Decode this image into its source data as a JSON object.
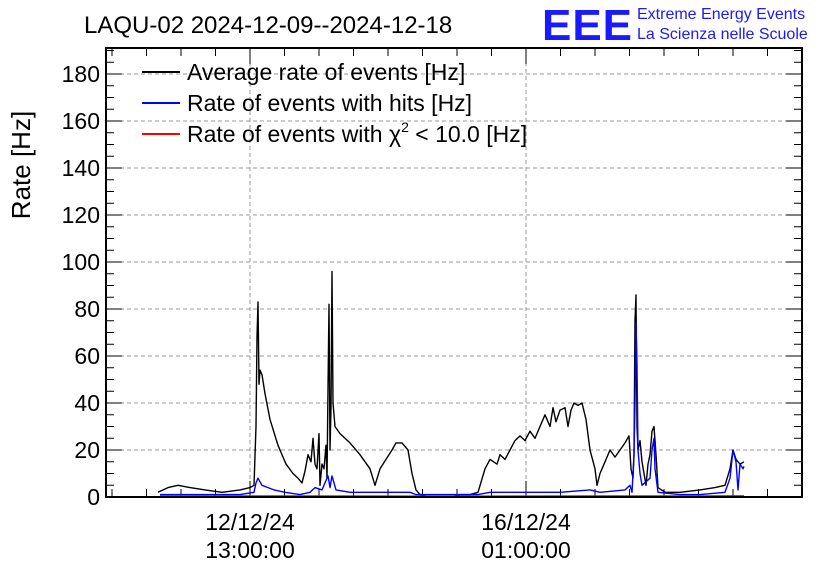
{
  "logo": {
    "mark": "EEE",
    "line1": "Extreme Energy Events",
    "line2": "La Scienza nelle Scuole",
    "color": "#1a1aff"
  },
  "chart_data": {
    "type": "line",
    "title": "LAQU-02 2024-12-09--2024-12-18",
    "ylabel": "Rate [Hz]",
    "xlabel": "",
    "ylim": [
      0,
      195
    ],
    "yticks": [
      0,
      20,
      40,
      60,
      80,
      100,
      120,
      140,
      160,
      180
    ],
    "xtick_labels": [
      {
        "date": "12/12/24",
        "time": "13:00:00"
      },
      {
        "date": "16/12/24",
        "time": "01:00:00"
      }
    ],
    "grid": true,
    "legend_placement": "top-left",
    "legend": [
      {
        "label": "Average rate of events [Hz]",
        "color": "#000000"
      },
      {
        "label": "Rate of events with hits [Hz]",
        "color": "#0000ff"
      },
      {
        "label_prefix": "Rate of events with ",
        "label_symbol": "χ",
        "label_sup": "2",
        "label_suffix": " < 10.0 [Hz]",
        "color": "#ff0000"
      }
    ],
    "series": [
      {
        "color": "#000000",
        "points": [
          [
            158,
            2
          ],
          [
            168,
            4
          ],
          [
            178,
            5
          ],
          [
            190,
            4
          ],
          [
            205,
            3
          ],
          [
            222,
            2
          ],
          [
            240,
            3
          ],
          [
            250,
            4
          ],
          [
            254,
            5
          ],
          [
            256,
            30
          ],
          [
            257,
            68
          ],
          [
            258,
            83
          ],
          [
            259,
            48
          ],
          [
            260,
            54
          ],
          [
            262,
            52
          ],
          [
            265,
            44
          ],
          [
            270,
            33
          ],
          [
            278,
            22
          ],
          [
            286,
            14
          ],
          [
            293,
            10
          ],
          [
            298,
            8
          ],
          [
            302,
            6
          ],
          [
            305,
            11
          ],
          [
            308,
            18
          ],
          [
            311,
            15
          ],
          [
            313,
            25
          ],
          [
            315,
            14
          ],
          [
            317,
            12
          ],
          [
            319,
            27
          ],
          [
            320,
            5
          ],
          [
            322,
            14
          ],
          [
            324,
            12
          ],
          [
            326,
            22
          ],
          [
            327,
            8
          ],
          [
            328,
            46
          ],
          [
            329,
            82
          ],
          [
            330,
            20
          ],
          [
            331,
            38
          ],
          [
            332,
            96
          ],
          [
            333,
            40
          ],
          [
            335,
            30
          ],
          [
            340,
            27
          ],
          [
            350,
            23
          ],
          [
            360,
            18
          ],
          [
            370,
            12
          ],
          [
            375,
            5
          ],
          [
            380,
            12
          ],
          [
            386,
            16
          ],
          [
            392,
            20
          ],
          [
            396,
            23
          ],
          [
            402,
            23
          ],
          [
            408,
            20
          ],
          [
            412,
            10
          ],
          [
            416,
            3
          ],
          [
            420,
            1
          ],
          [
            430,
            0
          ],
          [
            450,
            0
          ],
          [
            460,
            1
          ],
          [
            470,
            1
          ],
          [
            478,
            2
          ],
          [
            485,
            12
          ],
          [
            490,
            16
          ],
          [
            497,
            14
          ],
          [
            500,
            18
          ],
          [
            505,
            16
          ],
          [
            510,
            20
          ],
          [
            515,
            24
          ],
          [
            520,
            26
          ],
          [
            525,
            24
          ],
          [
            530,
            28
          ],
          [
            535,
            25
          ],
          [
            540,
            30
          ],
          [
            545,
            35
          ],
          [
            550,
            30
          ],
          [
            553,
            38
          ],
          [
            556,
            32
          ],
          [
            560,
            37
          ],
          [
            565,
            38
          ],
          [
            568,
            30
          ],
          [
            571,
            37
          ],
          [
            574,
            40
          ],
          [
            578,
            39
          ],
          [
            582,
            40
          ],
          [
            586,
            33
          ],
          [
            590,
            20
          ],
          [
            595,
            12
          ],
          [
            597,
            5
          ],
          [
            600,
            10
          ],
          [
            605,
            15
          ],
          [
            610,
            20
          ],
          [
            615,
            17
          ],
          [
            620,
            20
          ],
          [
            625,
            23
          ],
          [
            629,
            26
          ],
          [
            631,
            12
          ],
          [
            633,
            8
          ],
          [
            634,
            18
          ],
          [
            635,
            75
          ],
          [
            636,
            86
          ],
          [
            637,
            30
          ],
          [
            638,
            20
          ],
          [
            640,
            24
          ],
          [
            642,
            15
          ],
          [
            646,
            5
          ],
          [
            648,
            14
          ],
          [
            650,
            18
          ],
          [
            652,
            28
          ],
          [
            654,
            30
          ],
          [
            656,
            18
          ],
          [
            658,
            4
          ],
          [
            665,
            2
          ],
          [
            680,
            2
          ],
          [
            700,
            3
          ],
          [
            715,
            4
          ],
          [
            725,
            5
          ],
          [
            730,
            12
          ],
          [
            733,
            20
          ],
          [
            736,
            16
          ],
          [
            740,
            14
          ],
          [
            744,
            15
          ]
        ]
      },
      {
        "color": "#0000ff",
        "points": [
          [
            160,
            1
          ],
          [
            200,
            1
          ],
          [
            240,
            1
          ],
          [
            254,
            2
          ],
          [
            256,
            6
          ],
          [
            258,
            8
          ],
          [
            262,
            5
          ],
          [
            268,
            4
          ],
          [
            274,
            3
          ],
          [
            285,
            2
          ],
          [
            300,
            1
          ],
          [
            310,
            2
          ],
          [
            315,
            4
          ],
          [
            322,
            3
          ],
          [
            328,
            9
          ],
          [
            330,
            4
          ],
          [
            332,
            9
          ],
          [
            336,
            3
          ],
          [
            350,
            2
          ],
          [
            370,
            2
          ],
          [
            390,
            2
          ],
          [
            410,
            2
          ],
          [
            416,
            1
          ],
          [
            450,
            1
          ],
          [
            478,
            1
          ],
          [
            490,
            2
          ],
          [
            520,
            2
          ],
          [
            560,
            2
          ],
          [
            590,
            3
          ],
          [
            600,
            2
          ],
          [
            625,
            3
          ],
          [
            630,
            5
          ],
          [
            632,
            2
          ],
          [
            634,
            18
          ],
          [
            635,
            40
          ],
          [
            636,
            74
          ],
          [
            637,
            56
          ],
          [
            638,
            20
          ],
          [
            640,
            10
          ],
          [
            642,
            5
          ],
          [
            650,
            8
          ],
          [
            652,
            20
          ],
          [
            654,
            25
          ],
          [
            655,
            12
          ],
          [
            658,
            2
          ],
          [
            680,
            1
          ],
          [
            700,
            1
          ],
          [
            725,
            2
          ],
          [
            730,
            8
          ],
          [
            733,
            20
          ],
          [
            736,
            15
          ],
          [
            738,
            3
          ],
          [
            740,
            14
          ],
          [
            743,
            12
          ],
          [
            744,
            13
          ]
        ]
      },
      {
        "color": "#ff0000",
        "points": [
          [
            160,
            0.3
          ],
          [
            300,
            0.3
          ],
          [
            450,
            0.2
          ],
          [
            600,
            0.3
          ],
          [
            700,
            0.3
          ],
          [
            744,
            0.4
          ]
        ]
      }
    ]
  }
}
